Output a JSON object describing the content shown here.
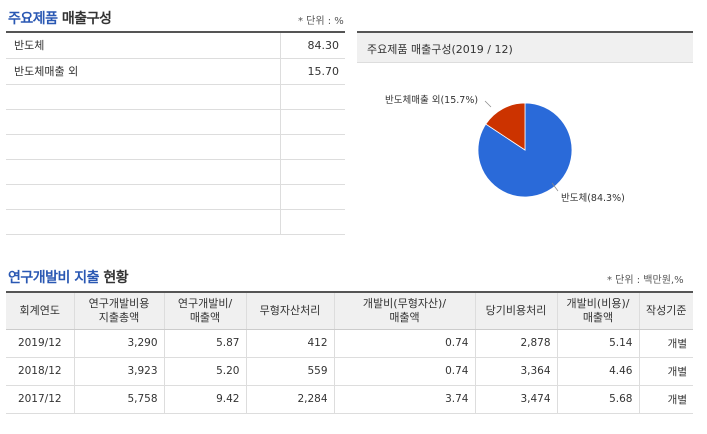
{
  "products": {
    "title_highlight": "주요제품",
    "title_rest": "매출구성",
    "unit": "* 단위 : %",
    "rows": [
      {
        "name": "반도체",
        "value": "84.30"
      },
      {
        "name": "반도체매출 외",
        "value": "15.70"
      }
    ]
  },
  "pie": {
    "header": "주요제품 매출구성(2019 / 12)",
    "colors": {
      "main": "#2a6ad9",
      "other": "#cc3300"
    },
    "labels": [
      "반도체매출 외(15.7%)",
      "반도체(84.3%)"
    ]
  },
  "chart_data": {
    "type": "pie",
    "title": "주요제품 매출구성(2019 / 12)",
    "categories": [
      "반도체",
      "반도체매출 외"
    ],
    "values": [
      84.3,
      15.7
    ]
  },
  "rnd": {
    "title_highlight": "연구개발비 지출",
    "title_rest": "현황",
    "unit": "* 단위 : 백만원,%",
    "headers": [
      [
        "회계연도"
      ],
      [
        "연구개발비용",
        "지출총액"
      ],
      [
        "연구개발비/",
        "매출액"
      ],
      [
        "무형자산처리"
      ],
      [
        "개발비(무형자산)/",
        "매출액"
      ],
      [
        "당기비용처리"
      ],
      [
        "개발비(비용)/",
        "매출액"
      ],
      [
        "작성기준"
      ]
    ],
    "rows": [
      [
        "2019/12",
        "3,290",
        "5.87",
        "412",
        "0.74",
        "2,878",
        "5.14",
        "개별"
      ],
      [
        "2018/12",
        "3,923",
        "5.20",
        "559",
        "0.74",
        "3,364",
        "4.46",
        "개별"
      ],
      [
        "2017/12",
        "5,758",
        "9.42",
        "2,284",
        "3.74",
        "3,474",
        "5.68",
        "개별"
      ]
    ]
  }
}
